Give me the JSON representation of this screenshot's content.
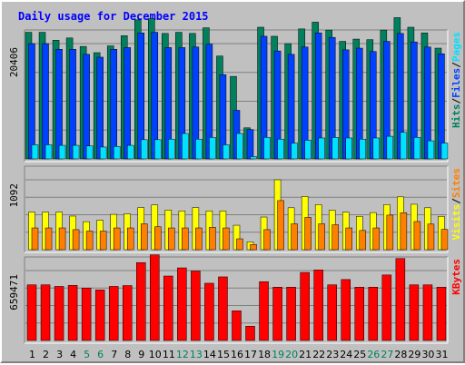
{
  "chart_data": {
    "title": "Daily usage for December 2015",
    "categories": [
      "1",
      "2",
      "3",
      "4",
      "5",
      "6",
      "7",
      "8",
      "9",
      "10",
      "11",
      "12",
      "13",
      "14",
      "15",
      "16",
      "17",
      "18",
      "19",
      "20",
      "21",
      "22",
      "23",
      "24",
      "25",
      "26",
      "27",
      "28",
      "29",
      "30",
      "31"
    ],
    "weekend_days": [
      "5",
      "6",
      "12",
      "13",
      "19",
      "20",
      "26",
      "27"
    ],
    "colors": {
      "hits": "#00805c",
      "files": "#0040ff",
      "pages": "#00e0ff",
      "visits": "#ffff00",
      "sites": "#ff8000",
      "kbytes": "#ff0000",
      "weekend_label": "#00805c",
      "weekday_label": "#000000"
    },
    "panels": [
      {
        "type": "bar",
        "ytick": "20406",
        "ymax": 20406,
        "labels": [
          {
            "text": "Pages",
            "color": "#00e0ff"
          },
          {
            "text": "/",
            "color": "#000000"
          },
          {
            "text": "Files",
            "color": "#0040ff"
          },
          {
            "text": "/",
            "color": "#000000"
          },
          {
            "text": "Hits",
            "color": "#00805c"
          }
        ],
        "series": [
          {
            "name": "Hits",
            "color": "#00805c",
            "values": [
              22400,
              22400,
              21000,
              21400,
              19900,
              18800,
              20000,
              21800,
              24600,
              24800,
              22200,
              22400,
              22200,
              23200,
              18200,
              14600,
              5500,
              23300,
              21700,
              20400,
              23000,
              24200,
              22800,
              20800,
              21200,
              21100,
              22800,
              25000,
              23300,
              22300,
              19600
            ]
          },
          {
            "name": "Files",
            "color": "#0040ff",
            "values": [
              20400,
              20400,
              19400,
              19400,
              18500,
              18000,
              19400,
              19700,
              22300,
              22400,
              19700,
              19700,
              19800,
              20300,
              14900,
              8600,
              5200,
              21700,
              19100,
              18500,
              19800,
              22300,
              21500,
              19300,
              19600,
              19000,
              20800,
              22200,
              20700,
              19800,
              18600
            ]
          },
          {
            "name": "Pages",
            "color": "#00e0ff",
            "values": [
              2500,
              2500,
              2400,
              2400,
              2300,
              2100,
              2200,
              2400,
              3400,
              3400,
              3500,
              4500,
              3500,
              3800,
              2500,
              4500,
              400,
              3800,
              3500,
              2800,
              3300,
              3700,
              3800,
              3700,
              3500,
              3700,
              4000,
              4700,
              3800,
              3200,
              2800
            ]
          }
        ]
      },
      {
        "type": "bar",
        "ytick": "1092",
        "ymax": 1092,
        "labels": [
          {
            "text": "Sites",
            "color": "#ff8000"
          },
          {
            "text": "/",
            "color": "#000000"
          },
          {
            "text": "Visits",
            "color": "#ffff00"
          }
        ],
        "series": [
          {
            "name": "Visits",
            "color": "#ffff00",
            "values": [
              588,
              588,
              588,
              525,
              438,
              460,
              552,
              560,
              658,
              700,
              620,
              605,
              658,
              605,
              605,
              382,
              122,
              510,
              1092,
              655,
              830,
              705,
              617,
              585,
              520,
              580,
              705,
              825,
              710,
              655,
              520
            ]
          },
          {
            "name": "Sites",
            "color": "#ff8000",
            "values": [
              340,
              340,
              340,
              313,
              290,
              290,
              340,
              340,
              404,
              358,
              340,
              340,
              340,
              350,
              340,
              170,
              82,
              313,
              767,
              404,
              504,
              404,
              390,
              340,
              300,
              340,
              540,
              577,
              440,
              400,
              317
            ]
          }
        ]
      },
      {
        "type": "bar",
        "ytick": "659471",
        "ymax": 659471,
        "labels": [
          {
            "text": "KBytes",
            "color": "#ff0000"
          }
        ],
        "series": [
          {
            "name": "KBytes",
            "color": "#ff0000",
            "values": [
              525000,
              525000,
              510000,
              520000,
              495000,
              477000,
              510000,
              518000,
              735000,
              808000,
              608000,
              685000,
              655000,
              540000,
              600000,
              280000,
              135000,
              555000,
              503000,
              503000,
              642000,
              666000,
              525000,
              575000,
              503000,
              503000,
              618000,
              773000,
              525000,
              525000,
              503000
            ]
          }
        ]
      }
    ]
  }
}
